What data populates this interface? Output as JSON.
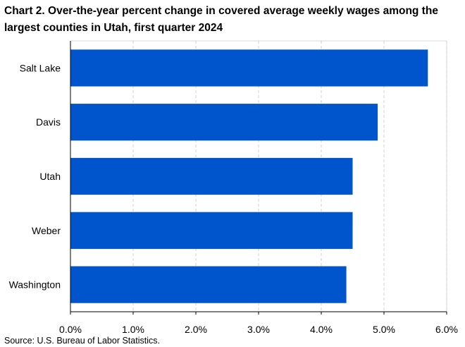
{
  "title": {
    "line1": "Chart 2. Over-the-year percent change in covered average weekly wages among the",
    "line2": "largest counties in Utah, first quarter 2024"
  },
  "source": "Source: U.S. Bureau of Labor Statistics.",
  "chart_data": {
    "type": "bar",
    "orientation": "horizontal",
    "title": "Chart 2. Over-the-year percent change in covered average weekly wages among the largest counties in Utah, first quarter 2024",
    "categories": [
      "Salt Lake",
      "Davis",
      "Utah",
      "Weber",
      "Washington"
    ],
    "values": [
      5.7,
      4.9,
      4.5,
      4.5,
      4.4
    ],
    "xlim": [
      0,
      6
    ],
    "xticks": [
      0,
      1,
      2,
      3,
      4,
      5,
      6
    ],
    "xtick_labels": [
      "0.0%",
      "1.0%",
      "2.0%",
      "3.0%",
      "4.0%",
      "5.0%",
      "6.0%"
    ],
    "xlabel": "",
    "ylabel": "",
    "grid": "vertical dashed",
    "bar_color": "#0055cc"
  }
}
